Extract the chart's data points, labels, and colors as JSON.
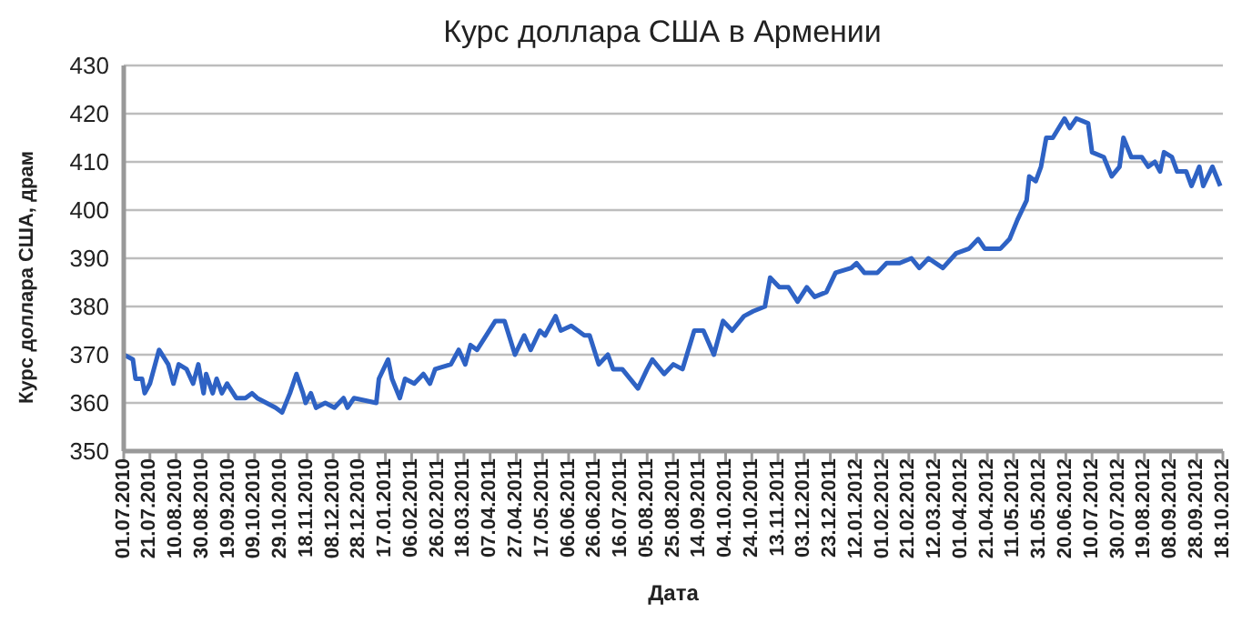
{
  "chart_data": {
    "type": "line",
    "title": "Курс доллара США в Армении",
    "xlabel": "Дата",
    "ylabel": "Курс доллара США, драм",
    "grid": "y",
    "legend": false,
    "marker": "none",
    "line_style": "solid",
    "ylim": [
      350,
      430
    ],
    "yticks": [
      350,
      360,
      370,
      380,
      390,
      400,
      410,
      420,
      430
    ],
    "xlim": [
      "2010-07-01",
      "2012-10-18"
    ],
    "xticks": [
      {
        "value": "2010-07-01",
        "label": "01.07.2010"
      },
      {
        "value": "2010-07-21",
        "label": "21.07.2010"
      },
      {
        "value": "2010-08-10",
        "label": "10.08.2010"
      },
      {
        "value": "2010-08-30",
        "label": "30.08.2010"
      },
      {
        "value": "2010-09-19",
        "label": "19.09.2010"
      },
      {
        "value": "2010-10-09",
        "label": "09.10.2010"
      },
      {
        "value": "2010-10-29",
        "label": "29.10.2010"
      },
      {
        "value": "2010-11-18",
        "label": "18.11.2010"
      },
      {
        "value": "2010-12-08",
        "label": "08.12.2010"
      },
      {
        "value": "2010-12-28",
        "label": "28.12.2010"
      },
      {
        "value": "2011-01-17",
        "label": "17.01.2011"
      },
      {
        "value": "2011-02-06",
        "label": "06.02.2011"
      },
      {
        "value": "2011-02-26",
        "label": "26.02.2011"
      },
      {
        "value": "2011-03-18",
        "label": "18.03.2011"
      },
      {
        "value": "2011-04-07",
        "label": "07.04.2011"
      },
      {
        "value": "2011-04-27",
        "label": "27.04.2011"
      },
      {
        "value": "2011-05-17",
        "label": "17.05.2011"
      },
      {
        "value": "2011-06-06",
        "label": "06.06.2011"
      },
      {
        "value": "2011-06-26",
        "label": "26.06.2011"
      },
      {
        "value": "2011-07-16",
        "label": "16.07.2011"
      },
      {
        "value": "2011-08-05",
        "label": "05.08.2011"
      },
      {
        "value": "2011-08-25",
        "label": "25.08.2011"
      },
      {
        "value": "2011-09-14",
        "label": "14.09.2011"
      },
      {
        "value": "2011-10-04",
        "label": "04.10.2011"
      },
      {
        "value": "2011-10-24",
        "label": "24.10.2011"
      },
      {
        "value": "2011-11-13",
        "label": "13.11.2011"
      },
      {
        "value": "2011-12-03",
        "label": "03.12.2011"
      },
      {
        "value": "2011-12-23",
        "label": "23.12.2011"
      },
      {
        "value": "2012-01-12",
        "label": "12.01.2012"
      },
      {
        "value": "2012-02-01",
        "label": "01.02.2012"
      },
      {
        "value": "2012-02-21",
        "label": "21.02.2012"
      },
      {
        "value": "2012-03-12",
        "label": "12.03.2012"
      },
      {
        "value": "2012-04-01",
        "label": "01.04.2012"
      },
      {
        "value": "2012-04-21",
        "label": "21.04.2012"
      },
      {
        "value": "2012-05-11",
        "label": "11.05.2012"
      },
      {
        "value": "2012-05-31",
        "label": "31.05.2012"
      },
      {
        "value": "2012-06-20",
        "label": "20.06.2012"
      },
      {
        "value": "2012-07-10",
        "label": "10.07.2012"
      },
      {
        "value": "2012-07-30",
        "label": "30.07.2012"
      },
      {
        "value": "2012-08-19",
        "label": "19.08.2012"
      },
      {
        "value": "2012-09-08",
        "label": "08.09.2012"
      },
      {
        "value": "2012-09-28",
        "label": "28.09.2012"
      },
      {
        "value": "2012-10-18",
        "label": "18.10.2012"
      }
    ],
    "x": [
      "2010-07-01",
      "2010-07-08",
      "2010-07-10",
      "2010-07-15",
      "2010-07-17",
      "2010-07-21",
      "2010-07-28",
      "2010-08-04",
      "2010-08-08",
      "2010-08-12",
      "2010-08-18",
      "2010-08-23",
      "2010-08-27",
      "2010-08-31",
      "2010-09-02",
      "2010-09-07",
      "2010-09-10",
      "2010-09-14",
      "2010-09-18",
      "2010-09-25",
      "2010-10-02",
      "2010-10-07",
      "2010-10-11",
      "2010-10-18",
      "2010-10-25",
      "2010-10-30",
      "2010-11-05",
      "2010-11-10",
      "2010-11-15",
      "2010-11-17",
      "2010-11-21",
      "2010-11-25",
      "2010-12-02",
      "2010-12-09",
      "2010-12-16",
      "2010-12-19",
      "2010-12-24",
      "2011-01-10",
      "2011-01-12",
      "2011-01-19",
      "2011-01-22",
      "2011-01-28",
      "2011-02-01",
      "2011-02-08",
      "2011-02-15",
      "2011-02-20",
      "2011-02-24",
      "2011-03-08",
      "2011-03-14",
      "2011-03-19",
      "2011-03-23",
      "2011-03-28",
      "2011-04-04",
      "2011-04-11",
      "2011-04-18",
      "2011-04-26",
      "2011-05-03",
      "2011-05-08",
      "2011-05-15",
      "2011-05-19",
      "2011-05-27",
      "2011-05-31",
      "2011-06-08",
      "2011-06-18",
      "2011-06-22",
      "2011-06-29",
      "2011-07-06",
      "2011-07-10",
      "2011-07-17",
      "2011-07-29",
      "2011-08-05",
      "2011-08-09",
      "2011-08-18",
      "2011-08-25",
      "2011-09-01",
      "2011-09-10",
      "2011-09-17",
      "2011-09-25",
      "2011-10-02",
      "2011-10-09",
      "2011-10-18",
      "2011-10-25",
      "2011-11-03",
      "2011-11-07",
      "2011-11-14",
      "2011-11-21",
      "2011-11-28",
      "2011-12-05",
      "2011-12-11",
      "2011-12-20",
      "2011-12-27",
      "2012-01-08",
      "2012-01-12",
      "2012-01-18",
      "2012-01-28",
      "2012-02-04",
      "2012-02-14",
      "2012-02-23",
      "2012-02-29",
      "2012-03-07",
      "2012-03-18",
      "2012-03-28",
      "2012-04-07",
      "2012-04-14",
      "2012-04-19",
      "2012-05-01",
      "2012-05-08",
      "2012-05-14",
      "2012-05-21",
      "2012-05-23",
      "2012-05-28",
      "2012-06-01",
      "2012-06-05",
      "2012-06-10",
      "2012-06-19",
      "2012-06-23",
      "2012-06-28",
      "2012-07-07",
      "2012-07-10",
      "2012-07-19",
      "2012-07-25",
      "2012-07-31",
      "2012-08-03",
      "2012-08-09",
      "2012-08-17",
      "2012-08-22",
      "2012-08-27",
      "2012-08-31",
      "2012-09-03",
      "2012-09-09",
      "2012-09-13",
      "2012-09-20",
      "2012-09-24",
      "2012-09-30",
      "2012-10-03",
      "2012-10-10",
      "2012-10-16"
    ],
    "series": [
      {
        "color": "#2e62c4",
        "values": [
          370,
          369,
          365,
          365,
          362,
          364,
          371,
          368,
          364,
          368,
          367,
          364,
          368,
          362,
          366,
          362,
          365,
          362,
          364,
          361,
          361,
          362,
          361,
          360,
          359,
          358,
          362,
          366,
          362,
          360,
          362,
          359,
          360,
          359,
          361,
          359,
          361,
          360,
          365,
          369,
          365,
          361,
          365,
          364,
          366,
          364,
          367,
          368,
          371,
          368,
          372,
          371,
          374,
          377,
          377,
          370,
          374,
          371,
          375,
          374,
          378,
          375,
          376,
          374,
          374,
          368,
          370,
          367,
          367,
          363,
          367,
          369,
          366,
          368,
          367,
          375,
          375,
          370,
          377,
          375,
          378,
          379,
          380,
          386,
          384,
          384,
          381,
          384,
          382,
          383,
          387,
          388,
          389,
          387,
          387,
          389,
          389,
          390,
          388,
          390,
          388,
          391,
          392,
          394,
          392,
          392,
          394,
          398,
          402,
          407,
          406,
          409,
          415,
          415,
          419,
          417,
          419,
          418,
          412,
          411,
          407,
          409,
          415,
          411,
          411,
          409,
          410,
          408,
          412,
          411,
          408,
          408,
          405,
          409,
          405,
          409,
          405
        ]
      }
    ]
  }
}
